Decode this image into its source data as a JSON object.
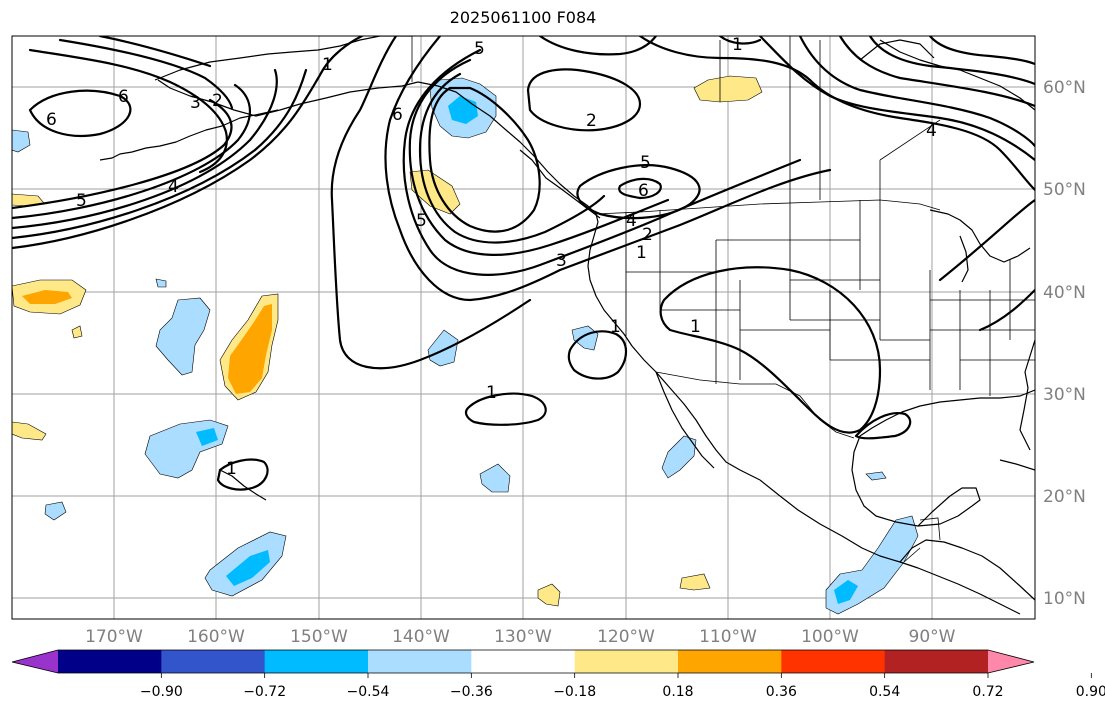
{
  "title": "2025061100 F084",
  "latitude_labels": [
    "60°N",
    "50°N",
    "40°N",
    "30°N",
    "20°N",
    "10°N"
  ],
  "longitude_labels": [
    "170°W",
    "160°W",
    "150°W",
    "140°W",
    "130°W",
    "120°W",
    "110°W",
    "100°W",
    "90°W"
  ],
  "colorbar": {
    "tick_labels": [
      "−0.90",
      "−0.72",
      "−0.54",
      "−0.36",
      "−0.18",
      "0.18",
      "0.36",
      "0.54",
      "0.72",
      "0.90"
    ],
    "colors": [
      "#9933cc",
      "#000088",
      "#3355cc",
      "#00bbff",
      "#aaddff",
      "#ffffff",
      "#ffe888",
      "#ffa500",
      "#ff3300",
      "#b22222",
      "#ff88aa"
    ]
  },
  "contour_labels": [
    "1",
    "2",
    "3",
    "4",
    "5",
    "6"
  ],
  "fill_colors": {
    "light_blue": "#aaddff",
    "blue": "#00bbff",
    "light_yellow": "#ffe888",
    "orange": "#ffa500"
  }
}
